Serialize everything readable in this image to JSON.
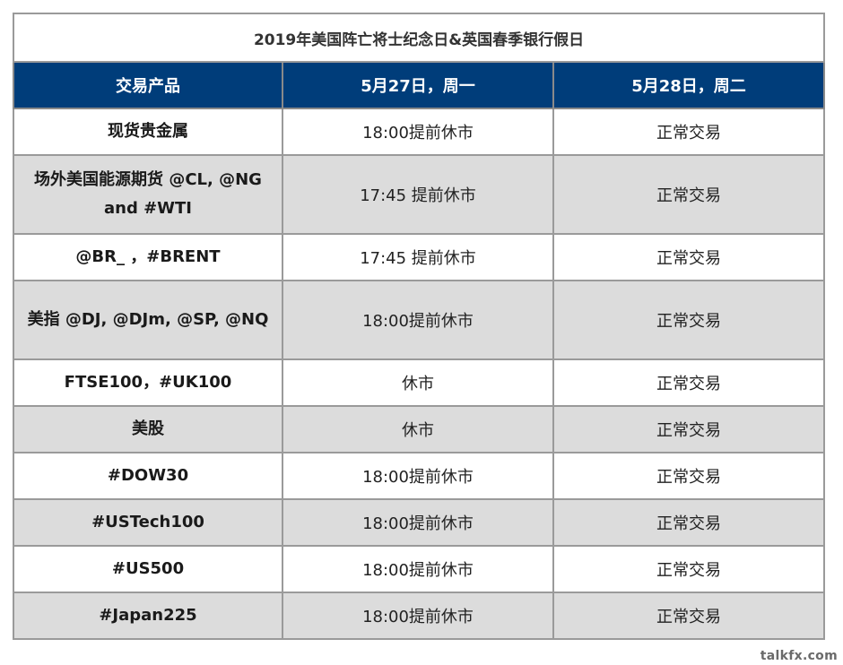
{
  "table": {
    "title": "2019年美国阵亡将士纪念日&英国春季银行假日",
    "headers": [
      "交易产品",
      "5月27日，周一",
      "5月28日，周二"
    ],
    "rows": [
      {
        "product": "现货贵金属",
        "may27": "18:00提前休市",
        "may28": "正常交易"
      },
      {
        "product": "场外美国能源期货 @CL, @NG and #WTI",
        "may27": "17:45 提前休市",
        "may28": "正常交易"
      },
      {
        "product": "@BR_ ，#BRENT",
        "may27": "17:45 提前休市",
        "may28": "正常交易"
      },
      {
        "product": "美指   @DJ, @DJm, @SP, @NQ",
        "may27": "18:00提前休市",
        "may28": "正常交易"
      },
      {
        "product": "FTSE100，#UK100",
        "may27": "休市",
        "may28": "正常交易"
      },
      {
        "product": "美股",
        "may27": "休市",
        "may28": "正常交易"
      },
      {
        "product": "#DOW30",
        "may27": "18:00提前休市",
        "may28": "正常交易"
      },
      {
        "product": "#USTech100",
        "may27": "18:00提前休市",
        "may28": "正常交易"
      },
      {
        "product": "#US500",
        "may27": "18:00提前休市",
        "may28": "正常交易"
      },
      {
        "product": "#Japan225",
        "may27": "18:00提前休市",
        "may28": "正常交易"
      }
    ]
  },
  "colors": {
    "header_bg": "#003d7a",
    "header_text": "#ffffff",
    "row_alt_bg": "#dcdcdc",
    "border": "#9a9a9a"
  },
  "watermark": "talkfx.com"
}
